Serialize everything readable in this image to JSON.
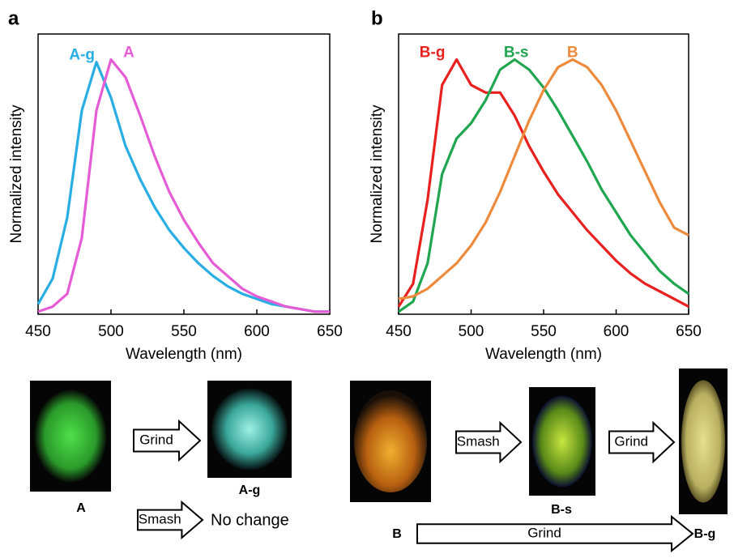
{
  "chart_data": [
    {
      "type": "line",
      "x_label": "Wavelength (nm)",
      "y_label": "Normalized intensity",
      "x": [
        450,
        460,
        470,
        480,
        490,
        500,
        510,
        520,
        530,
        540,
        550,
        560,
        570,
        580,
        590,
        600,
        610,
        620,
        630,
        640,
        650
      ],
      "xlim": [
        450,
        650
      ],
      "xticks": [
        450,
        500,
        550,
        600,
        650
      ],
      "ylim": [
        0,
        1.1
      ],
      "series": [
        {
          "name": "A-g",
          "color": "#29aee4",
          "values": [
            0.04,
            0.14,
            0.38,
            0.8,
            0.99,
            0.85,
            0.66,
            0.53,
            0.42,
            0.33,
            0.26,
            0.2,
            0.15,
            0.11,
            0.08,
            0.06,
            0.04,
            0.03,
            0.02,
            0.01,
            0.01
          ]
        },
        {
          "name": "A",
          "color": "#e65cd6",
          "values": [
            0.01,
            0.03,
            0.08,
            0.3,
            0.8,
            1.0,
            0.93,
            0.78,
            0.62,
            0.48,
            0.37,
            0.28,
            0.2,
            0.15,
            0.1,
            0.07,
            0.05,
            0.03,
            0.02,
            0.01,
            0.01
          ]
        }
      ]
    },
    {
      "type": "line",
      "x_label": "Wavelength (nm)",
      "y_label": "Normalized intensity",
      "x": [
        450,
        460,
        470,
        480,
        490,
        500,
        510,
        520,
        530,
        540,
        550,
        560,
        570,
        580,
        590,
        600,
        610,
        620,
        630,
        640,
        650
      ],
      "xlim": [
        450,
        650
      ],
      "xticks": [
        450,
        500,
        550,
        600,
        650
      ],
      "ylim": [
        0,
        1.1
      ],
      "series": [
        {
          "name": "B-g",
          "color": "#e8201e",
          "values": [
            0.03,
            0.12,
            0.45,
            0.9,
            1.0,
            0.9,
            0.87,
            0.87,
            0.78,
            0.66,
            0.56,
            0.47,
            0.4,
            0.33,
            0.27,
            0.21,
            0.16,
            0.12,
            0.09,
            0.06,
            0.03
          ]
        },
        {
          "name": "B-s",
          "color": "#1fa64f",
          "values": [
            0.01,
            0.05,
            0.2,
            0.55,
            0.69,
            0.75,
            0.84,
            0.96,
            1.0,
            0.96,
            0.89,
            0.8,
            0.7,
            0.6,
            0.49,
            0.4,
            0.31,
            0.24,
            0.17,
            0.12,
            0.08
          ]
        },
        {
          "name": "B",
          "color": "#ee8a3c",
          "values": [
            0.06,
            0.07,
            0.1,
            0.15,
            0.2,
            0.27,
            0.36,
            0.48,
            0.62,
            0.76,
            0.88,
            0.97,
            1.0,
            0.97,
            0.9,
            0.8,
            0.68,
            0.56,
            0.44,
            0.34,
            0.31
          ]
        }
      ]
    }
  ],
  "figure": {
    "panel_labels": [
      "a",
      "b"
    ],
    "photos": [
      "A",
      "A-g",
      "B",
      "B-s",
      "B-g"
    ],
    "arrows": [
      "Grind",
      "Smash",
      "Smash",
      "Grind",
      "Grind"
    ],
    "note": "No change"
  }
}
